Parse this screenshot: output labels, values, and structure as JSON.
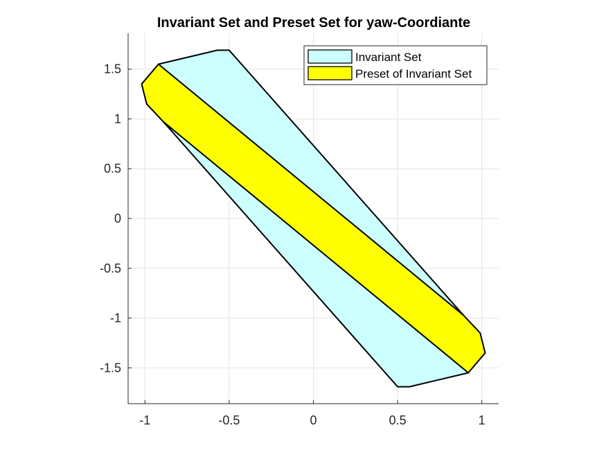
{
  "chart_data": {
    "type": "area",
    "title": "Invariant Set and Preset Set for yaw-Coordiante",
    "xlabel": "",
    "ylabel": "",
    "xlim": [
      -1.1,
      1.1
    ],
    "ylim": [
      -1.86,
      1.86
    ],
    "xticks": [
      -1,
      -0.5,
      0,
      0.5,
      1
    ],
    "xtick_labels": [
      "-1",
      "-0.5",
      "0",
      "0.5",
      "1"
    ],
    "yticks": [
      -1.5,
      -1,
      -0.5,
      0,
      0.5,
      1,
      1.5
    ],
    "ytick_labels": [
      "-1.5",
      "-1",
      "-0.5",
      "0",
      "0.5",
      "1",
      "1.5"
    ],
    "grid": true,
    "legend_location": "top-right",
    "series": [
      {
        "name": "Invariant Set",
        "color": "#ccffff",
        "points": [
          [
            -0.57,
            1.69
          ],
          [
            -0.5,
            1.69
          ],
          [
            0.89,
            -0.97
          ],
          [
            0.92,
            -1.55
          ],
          [
            0.57,
            -1.69
          ],
          [
            0.5,
            -1.69
          ],
          [
            -0.89,
            0.97
          ],
          [
            -0.92,
            1.55
          ]
        ]
      },
      {
        "name": "Preset of Invariant Set",
        "color": "#ffff00",
        "points": [
          [
            -0.92,
            1.55
          ],
          [
            0.89,
            -0.97
          ],
          [
            0.99,
            -1.15
          ],
          [
            1.02,
            -1.35
          ],
          [
            0.92,
            -1.55
          ],
          [
            -0.89,
            0.97
          ],
          [
            -0.99,
            1.15
          ],
          [
            -1.02,
            1.35
          ]
        ]
      }
    ]
  }
}
